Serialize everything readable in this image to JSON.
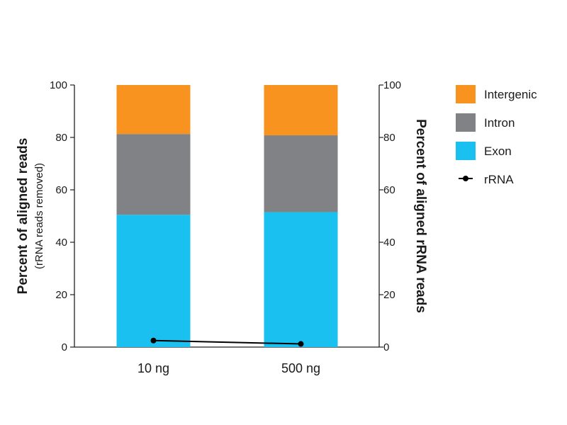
{
  "chart_data": {
    "type": "bar",
    "stacked": true,
    "categories": [
      "10 ng",
      "500 ng"
    ],
    "series": [
      {
        "name": "Exon",
        "values": [
          50.5,
          51.5
        ],
        "color": "#19c0f0"
      },
      {
        "name": "Intron",
        "values": [
          30.8,
          29.3
        ],
        "color": "#808285"
      },
      {
        "name": "Intergenic",
        "values": [
          18.7,
          19.2
        ],
        "color": "#f7931e"
      }
    ],
    "line_series": {
      "name": "rRNA",
      "axis": "right",
      "values": [
        2.5,
        1.2
      ],
      "color": "#000000"
    },
    "y_left": {
      "label": "Percent of aligned reads",
      "sublabel": "(rRNA reads removed)",
      "range": [
        0,
        100
      ],
      "ticks": [
        0,
        20,
        40,
        60,
        80,
        100
      ]
    },
    "y_right": {
      "label": "Percent of aligned rRNA reads",
      "range": [
        0,
        100
      ],
      "ticks": [
        0,
        20,
        40,
        60,
        80,
        100
      ]
    },
    "legend_order": [
      "Intergenic",
      "Intron",
      "Exon",
      "rRNA"
    ],
    "legend_position": "top-right",
    "grid": false
  }
}
